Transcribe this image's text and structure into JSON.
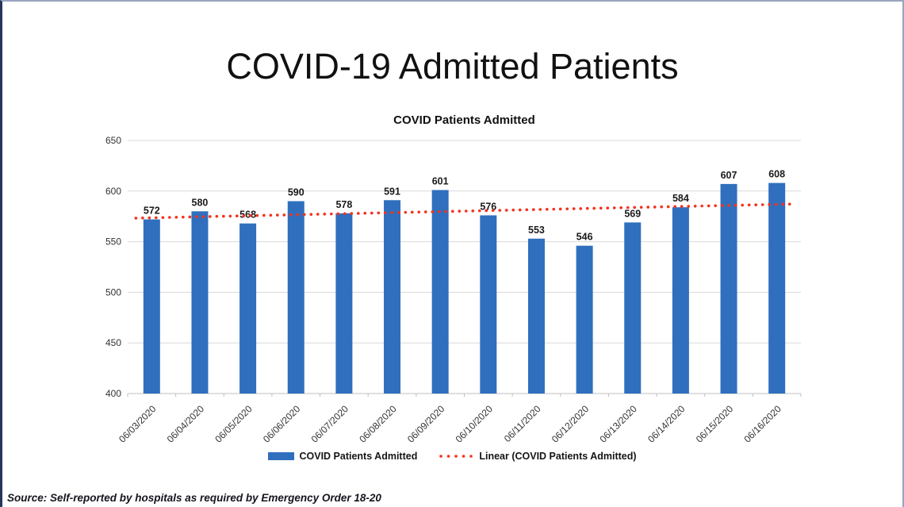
{
  "page": {
    "title": "COVID-19 Admitted Patients"
  },
  "chart_data": {
    "type": "bar",
    "title": "COVID Patients Admitted",
    "series_name": "COVID Patients Admitted",
    "categories": [
      "06/03/2020",
      "06/04/2020",
      "06/05/2020",
      "06/06/2020",
      "06/07/2020",
      "06/08/2020",
      "06/09/2020",
      "06/10/2020",
      "06/11/2020",
      "06/12/2020",
      "06/13/2020",
      "06/14/2020",
      "06/15/2020",
      "06/16/2020"
    ],
    "values": [
      572,
      580,
      568,
      590,
      578,
      591,
      601,
      576,
      553,
      546,
      569,
      584,
      607,
      608
    ],
    "trendline": {
      "type": "linear",
      "label": "Linear (COVID Patients Admitted)"
    },
    "ylim": [
      400,
      650
    ],
    "ytick_step": 50,
    "grid": true,
    "legend_position": "bottom",
    "bar_color": "#2F6FBE",
    "trend_color": "#F4331D",
    "gridline_color": "#D9D9D9",
    "axis_color": "#BFBFBF",
    "label_color": "#333333",
    "value_label_color": "#1a1a1a"
  },
  "footer": {
    "source": "Source: Self-reported by hospitals as required by Emergency Order 18-20"
  }
}
